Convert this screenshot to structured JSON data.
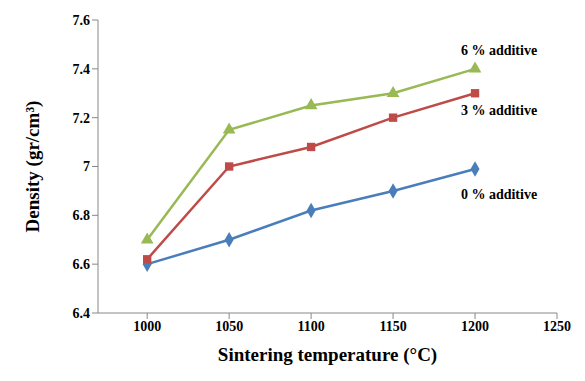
{
  "chart_data": {
    "type": "line",
    "x_label": "Sintering temperature (°C)",
    "y_label": "Density (gr/cm³)",
    "x": [
      1000,
      1050,
      1100,
      1150,
      1200
    ],
    "xlim": [
      970,
      1250
    ],
    "xticks": [
      1000,
      1050,
      1100,
      1150,
      1200,
      1250
    ],
    "ylim": [
      6.4,
      7.6
    ],
    "yticks": [
      6.4,
      6.6,
      6.8,
      7,
      7.2,
      7.4,
      7.6
    ],
    "grid": false,
    "series": [
      {
        "name": "0 % additive",
        "color": "#4a7ebb",
        "marker": "diamond",
        "values": [
          6.6,
          6.7,
          6.82,
          6.9,
          6.99
        ]
      },
      {
        "name": "3 % additive",
        "color": "#be4b48",
        "marker": "square",
        "values": [
          6.62,
          7.0,
          7.08,
          7.2,
          7.3
        ]
      },
      {
        "name": "6 % additive",
        "color": "#98b954",
        "marker": "triangle",
        "values": [
          6.7,
          7.15,
          7.25,
          7.3,
          7.4
        ]
      }
    ]
  }
}
